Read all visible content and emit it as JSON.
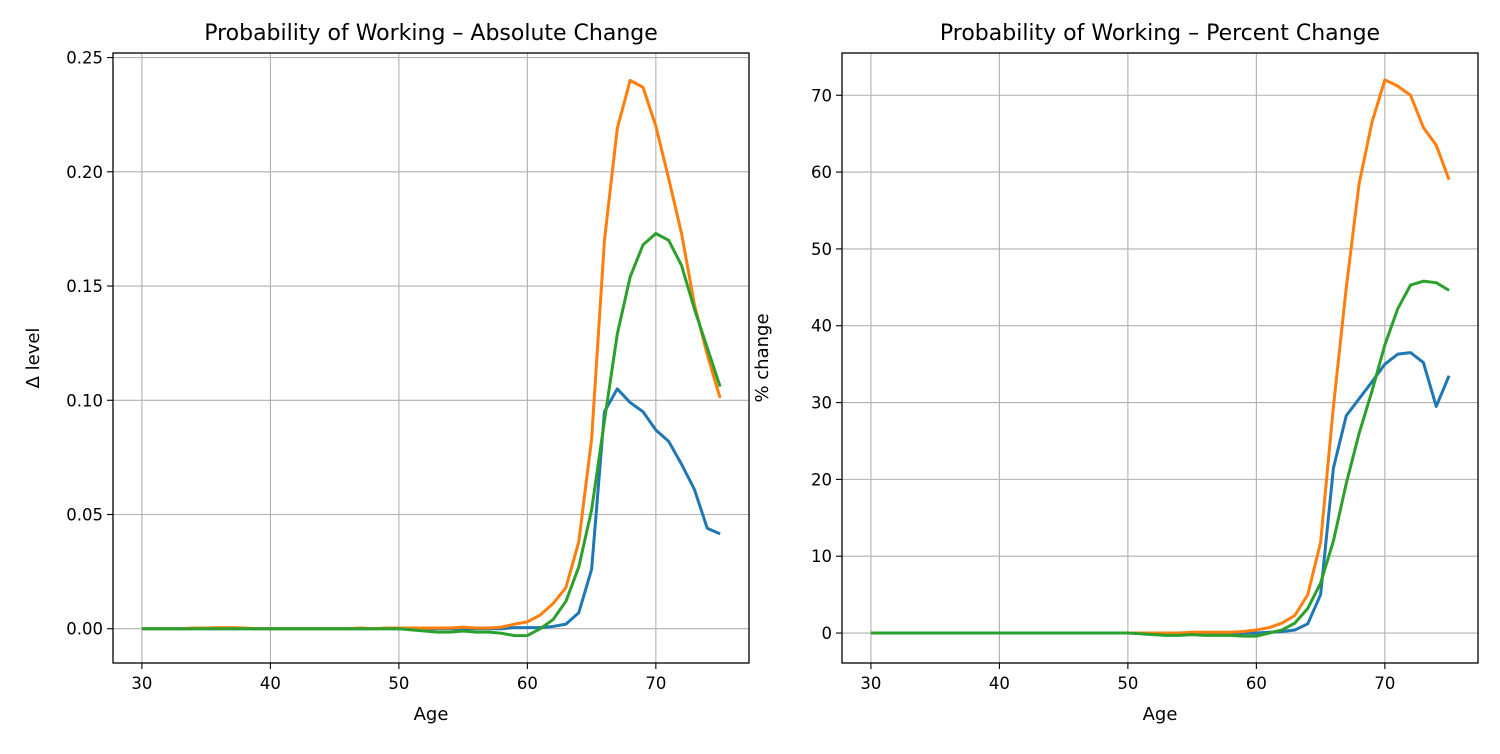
{
  "chart_data": [
    {
      "type": "line",
      "title": "Probability of Working – Absolute Change",
      "xlabel": "Age",
      "ylabel": "Δ level",
      "xlim": [
        27.75,
        77.25
      ],
      "ylim": [
        -0.015,
        0.252
      ],
      "xticks": [
        30,
        40,
        50,
        60,
        70
      ],
      "xtick_labels": [
        "30",
        "40",
        "50",
        "60",
        "70"
      ],
      "yticks": [
        0,
        0.05,
        0.1,
        0.15,
        0.2,
        0.25
      ],
      "ytick_labels": [
        "0.00",
        "0.05",
        "0.10",
        "0.15",
        "0.20",
        "0.25"
      ],
      "grid": true,
      "x": [
        30,
        31,
        32,
        33,
        34,
        35,
        36,
        37,
        38,
        39,
        40,
        41,
        42,
        43,
        44,
        45,
        46,
        47,
        48,
        49,
        50,
        51,
        52,
        53,
        54,
        55,
        56,
        57,
        58,
        59,
        60,
        61,
        62,
        63,
        64,
        65,
        66,
        67,
        68,
        69,
        70,
        71,
        72,
        73,
        74,
        75
      ],
      "series": [
        {
          "color": "#1f77b4",
          "values": [
            0,
            0,
            0,
            0,
            0,
            0,
            0,
            0,
            0,
            0,
            0,
            0,
            0,
            0,
            0,
            0,
            0,
            0,
            0,
            0,
            0,
            0,
            0,
            0,
            0,
            0,
            0,
            0,
            0,
            0.0005,
            0.0005,
            0.0005,
            0.001,
            0.002,
            0.007,
            0.026,
            0.095,
            0.105,
            0.099,
            0.095,
            0.087,
            0.082,
            0.072,
            0.061,
            0.044,
            0.0415
          ]
        },
        {
          "color": "#ff7f0e",
          "values": [
            0,
            0,
            0,
            0,
            0.0003,
            0.0003,
            0.0005,
            0.0005,
            0.0003,
            0,
            0,
            0,
            0,
            0,
            0,
            0,
            0,
            0.0003,
            0,
            0.0003,
            0.0003,
            0.0003,
            0.0003,
            0.0003,
            0.0003,
            0.0007,
            0.0003,
            0.0003,
            0.0007,
            0.002,
            0.003,
            0.006,
            0.011,
            0.018,
            0.038,
            0.083,
            0.17,
            0.219,
            0.24,
            0.237,
            0.22,
            0.197,
            0.173,
            0.142,
            0.12,
            0.101
          ]
        },
        {
          "color": "#2ca02c",
          "values": [
            0,
            0,
            0,
            0,
            0,
            0,
            0,
            0,
            0,
            0,
            0,
            0,
            0,
            0,
            0,
            0,
            0,
            0,
            0,
            0,
            0,
            -0.0005,
            -0.001,
            -0.0015,
            -0.0015,
            -0.001,
            -0.0015,
            -0.0015,
            -0.002,
            -0.003,
            -0.003,
            0,
            0.004,
            0.012,
            0.027,
            0.052,
            0.091,
            0.129,
            0.154,
            0.168,
            0.173,
            0.17,
            0.159,
            0.14,
            0.123,
            0.106
          ]
        }
      ]
    },
    {
      "type": "line",
      "title": "Probability of Working – Percent Change",
      "xlabel": "Age",
      "ylabel": "% change",
      "xlim": [
        27.75,
        77.25
      ],
      "ylim": [
        -3.9,
        75.5
      ],
      "xticks": [
        30,
        40,
        50,
        60,
        70
      ],
      "xtick_labels": [
        "30",
        "40",
        "50",
        "60",
        "70"
      ],
      "yticks": [
        0,
        10,
        20,
        30,
        40,
        50,
        60,
        70
      ],
      "ytick_labels": [
        "0",
        "10",
        "20",
        "30",
        "40",
        "50",
        "60",
        "70"
      ],
      "grid": true,
      "x": [
        30,
        31,
        32,
        33,
        34,
        35,
        36,
        37,
        38,
        39,
        40,
        41,
        42,
        43,
        44,
        45,
        46,
        47,
        48,
        49,
        50,
        51,
        52,
        53,
        54,
        55,
        56,
        57,
        58,
        59,
        60,
        61,
        62,
        63,
        64,
        65,
        66,
        67,
        68,
        69,
        70,
        71,
        72,
        73,
        74,
        75
      ],
      "series": [
        {
          "color": "#1f77b4",
          "values": [
            0,
            0,
            0,
            0,
            0,
            0,
            0,
            0,
            0,
            0,
            0,
            0,
            0,
            0,
            0,
            0,
            0,
            0,
            0,
            0,
            0,
            0,
            0,
            0,
            0,
            0,
            0,
            0,
            0,
            0,
            0,
            0.1,
            0.2,
            0.4,
            1.2,
            5,
            21.5,
            28.3,
            30.5,
            32.7,
            35,
            36.3,
            36.5,
            35.2,
            29.5,
            33.5
          ]
        },
        {
          "color": "#ff7f0e",
          "values": [
            0,
            0,
            0,
            0,
            0,
            0,
            0,
            0,
            0,
            0,
            0,
            0,
            0,
            0,
            0,
            0,
            0,
            0,
            0,
            0,
            0,
            0,
            0,
            0,
            0,
            0.1,
            0.1,
            0.1,
            0.1,
            0.2,
            0.4,
            0.7,
            1.3,
            2.3,
            5,
            11.8,
            29.5,
            45,
            58.5,
            66.5,
            72,
            71.2,
            70,
            65.8,
            63.5,
            59
          ]
        },
        {
          "color": "#2ca02c",
          "values": [
            0,
            0,
            0,
            0,
            0,
            0,
            0,
            0,
            0,
            0,
            0,
            0,
            0,
            0,
            0,
            0,
            0,
            0,
            0,
            0,
            0,
            -0.1,
            -0.2,
            -0.3,
            -0.3,
            -0.2,
            -0.3,
            -0.3,
            -0.3,
            -0.4,
            -0.4,
            0,
            0.4,
            1.3,
            3.2,
            6.5,
            12,
            19.5,
            26,
            31.5,
            37.5,
            42.2,
            45.3,
            45.8,
            45.6,
            44.6
          ]
        }
      ]
    }
  ]
}
